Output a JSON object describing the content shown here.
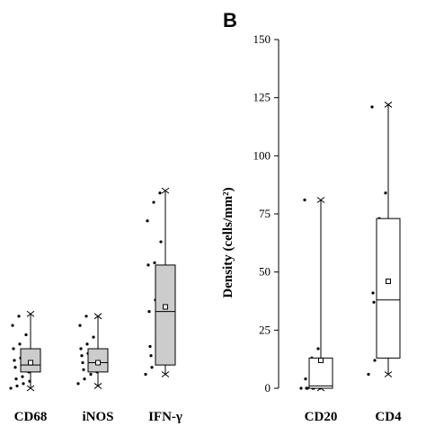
{
  "panel_b_label": "B",
  "chart_data": [
    {
      "type": "box",
      "panel": "A (partial)",
      "categories": [
        "CD68",
        "iNOS",
        "IFN-γ"
      ],
      "ylim": [
        0,
        150
      ],
      "boxes": [
        {
          "category": "CD68",
          "min": 0,
          "q1": 7,
          "median": 10,
          "q3": 17,
          "max": 32,
          "mean": 11,
          "fill": "#cccccc",
          "points": [
            0,
            1,
            2,
            3,
            4,
            5,
            7,
            9,
            10,
            11,
            12,
            13,
            15,
            17,
            19,
            23,
            27,
            31
          ]
        },
        {
          "category": "iNOS",
          "min": 1,
          "q1": 7,
          "median": 11,
          "q3": 17,
          "max": 31,
          "mean": 11,
          "fill": "#cccccc",
          "points": [
            2,
            4,
            6,
            7,
            8,
            9,
            10,
            11,
            12,
            13,
            14,
            15,
            16,
            17,
            19,
            22,
            27,
            31
          ]
        },
        {
          "category": "IFN-γ",
          "min": 6,
          "q1": 10,
          "median": 33,
          "q3": 53,
          "max": 85,
          "mean": 35,
          "fill": "#cccccc",
          "points": [
            6,
            9,
            11,
            12,
            14,
            15,
            16,
            18,
            23,
            28,
            33,
            38,
            41,
            53,
            54,
            63,
            72,
            80,
            84
          ]
        }
      ]
    },
    {
      "type": "box",
      "panel": "B",
      "categories": [
        "CD20",
        "CD4"
      ],
      "ylabel": "Density (cells/mm²)",
      "ylim": [
        0,
        150
      ],
      "yticks": [
        0,
        25,
        50,
        75,
        100,
        125,
        150
      ],
      "boxes": [
        {
          "category": "CD20",
          "min": 0,
          "q1": 0,
          "median": 1,
          "q3": 13,
          "max": 81,
          "mean": 12,
          "fill": "#ffffff",
          "points": [
            0,
            0,
            0,
            0,
            0,
            0,
            1,
            4,
            13,
            17,
            81
          ]
        },
        {
          "category": "CD4",
          "min": 6,
          "q1": 13,
          "median": 38,
          "q3": 73,
          "max": 122,
          "mean": 46,
          "fill": "#ffffff",
          "points": [
            6,
            12,
            16,
            36,
            37,
            38,
            40,
            41,
            73,
            84,
            121
          ]
        }
      ]
    }
  ]
}
